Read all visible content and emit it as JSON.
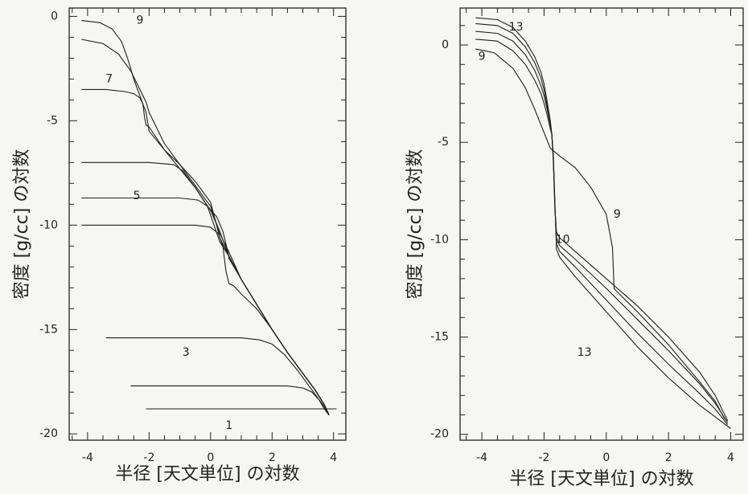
{
  "chart_data": [
    {
      "type": "line",
      "xlabel": "半径 [天文単位] の対数",
      "ylabel": "密度 [g/cc] の対数",
      "xlim": [
        -4.6,
        4.4
      ],
      "ylim": [
        -20.3,
        0.4
      ],
      "xticks": [
        -4,
        -2,
        0,
        2,
        4
      ],
      "yticks": [
        0,
        -5,
        -10,
        -15,
        -20
      ],
      "grid": false,
      "series": [
        {
          "x": [
            -4.2,
            -3.6,
            -3.2,
            -2.9,
            -2.7,
            -2.5,
            -2.3,
            -2.1,
            -2.0,
            -1.5,
            -1.0,
            -0.5,
            0.0,
            0.3,
            0.6,
            1.0,
            1.5,
            2.0,
            2.5,
            3.0,
            3.4,
            3.7,
            3.85
          ],
          "y": [
            -0.2,
            -0.3,
            -0.6,
            -1.2,
            -2.0,
            -3.0,
            -3.8,
            -4.6,
            -5.5,
            -6.4,
            -7.3,
            -8.2,
            -9.3,
            -10.3,
            -11.5,
            -12.6,
            -13.8,
            -15.0,
            -16.1,
            -17.1,
            -17.9,
            -18.6,
            -19.1
          ]
        },
        {
          "x": [
            -4.2,
            -3.5,
            -3.0,
            -2.6,
            -2.3,
            -2.1,
            -2.0,
            -1.5,
            -1.0,
            -0.5,
            0.0,
            0.3,
            0.6,
            1.0,
            1.5,
            2.0,
            2.5,
            3.0,
            3.4,
            3.7,
            3.85
          ],
          "y": [
            -1.1,
            -1.3,
            -1.8,
            -2.6,
            -3.5,
            -4.1,
            -4.6,
            -6.1,
            -7.1,
            -8.1,
            -9.1,
            -10.4,
            -11.3,
            -12.6,
            -13.8,
            -15.0,
            -16.1,
            -17.1,
            -17.9,
            -18.6,
            -19.1
          ]
        },
        {
          "x": [
            -4.2,
            -3.4,
            -2.8,
            -2.5,
            -2.3,
            -2.2,
            -2.15,
            -2.1,
            -2.0,
            -1.5,
            -1.0,
            -0.5,
            0.0,
            0.3,
            0.6,
            1.0,
            1.5,
            2.0,
            2.5,
            3.0,
            3.4,
            3.7,
            3.85
          ],
          "y": [
            -3.5,
            -3.5,
            -3.6,
            -3.7,
            -3.9,
            -4.2,
            -4.8,
            -5.2,
            -5.3,
            -6.4,
            -7.1,
            -7.9,
            -8.9,
            -10.6,
            -11.5,
            -12.6,
            -13.8,
            -15.0,
            -16.1,
            -17.1,
            -17.9,
            -18.6,
            -19.1
          ]
        },
        {
          "x": [
            -4.2,
            -2.0,
            -1.2,
            -0.9,
            -0.5,
            -0.1,
            0.3,
            0.6,
            1.0,
            1.5,
            2.0,
            2.5,
            3.0,
            3.4,
            3.7,
            3.85
          ],
          "y": [
            -7.0,
            -7.0,
            -7.1,
            -7.4,
            -8.2,
            -9.1,
            -10.8,
            -11.5,
            -12.6,
            -13.8,
            -15.0,
            -16.1,
            -17.1,
            -17.9,
            -18.6,
            -19.1
          ]
        },
        {
          "x": [
            -4.2,
            -1.0,
            -0.4,
            -0.1,
            0.2,
            0.4,
            0.55,
            0.6,
            1.0,
            1.5,
            2.0,
            2.5,
            3.0,
            3.4,
            3.7,
            3.85
          ],
          "y": [
            -8.7,
            -8.7,
            -8.8,
            -9.1,
            -9.6,
            -10.3,
            -11.2,
            -11.6,
            -12.6,
            -13.8,
            -15.0,
            -16.1,
            -17.1,
            -17.9,
            -18.6,
            -19.1
          ]
        },
        {
          "x": [
            -4.2,
            -0.5,
            0.0,
            0.25,
            0.4,
            0.5,
            0.6,
            0.75,
            1.0,
            1.5,
            2.0,
            2.5,
            3.0,
            3.4,
            3.7,
            3.85
          ],
          "y": [
            -10.0,
            -10.0,
            -10.1,
            -10.4,
            -11.0,
            -12.2,
            -12.8,
            -12.9,
            -13.3,
            -14.0,
            -15.0,
            -16.1,
            -17.1,
            -17.9,
            -18.6,
            -19.1
          ]
        },
        {
          "x": [
            -3.4,
            1.0,
            1.6,
            2.0,
            2.4,
            2.8,
            3.2,
            3.5,
            3.7,
            3.85
          ],
          "y": [
            -15.4,
            -15.4,
            -15.5,
            -15.7,
            -16.2,
            -16.9,
            -17.7,
            -18.3,
            -18.8,
            -19.1
          ]
        },
        {
          "x": [
            -2.6,
            2.5,
            3.0,
            3.3,
            3.55,
            3.7,
            3.85
          ],
          "y": [
            -17.7,
            -17.7,
            -17.8,
            -18.0,
            -18.4,
            -18.7,
            -19.1
          ]
        },
        {
          "x": [
            -2.1,
            4.1
          ],
          "y": [
            -18.8,
            -18.8
          ],
          "strokeWidth": 3
        }
      ],
      "annotations": [
        {
          "text": "9",
          "x": -2.3,
          "y": -0.2
        },
        {
          "text": "7",
          "x": -3.3,
          "y": -3.0
        },
        {
          "text": "5",
          "x": -2.4,
          "y": -8.6
        },
        {
          "text": "3",
          "x": -0.8,
          "y": -16.1
        },
        {
          "text": "1",
          "x": 0.6,
          "y": -19.6
        }
      ]
    },
    {
      "type": "line",
      "xlabel": "半径 [天文単位] の対数",
      "ylabel": "密度 [g/cc] の対数",
      "xlim": [
        -4.7,
        4.4
      ],
      "ylim": [
        -20.3,
        1.9
      ],
      "xticks": [
        -4,
        -2,
        0,
        2,
        4
      ],
      "yticks": [
        0,
        -5,
        -10,
        -15,
        -20
      ],
      "grid": false,
      "series": [
        {
          "x": [
            -4.2,
            -3.6,
            -3.0,
            -2.6,
            -2.3,
            -2.0,
            -1.8,
            -1.5,
            -1.0,
            -0.5,
            0.0,
            0.2,
            0.25,
            0.3,
            1.0,
            2.0,
            3.0,
            3.5,
            3.8
          ],
          "y": [
            -0.2,
            -0.4,
            -1.2,
            -2.2,
            -3.3,
            -4.5,
            -5.3,
            -5.7,
            -6.3,
            -7.3,
            -8.7,
            -10.4,
            -12.5,
            -12.6,
            -13.7,
            -15.4,
            -17.3,
            -18.3,
            -19.2
          ]
        },
        {
          "x": [
            -4.2,
            -3.5,
            -3.0,
            -2.6,
            -2.3,
            -2.1,
            -2.0,
            -1.9,
            -1.8,
            -1.75,
            -1.7,
            -1.65,
            -1.6,
            -1.5,
            -1.0,
            0.0,
            1.0,
            2.0,
            3.0,
            3.5,
            3.9
          ],
          "y": [
            0.3,
            0.2,
            -0.3,
            -1.0,
            -1.8,
            -2.5,
            -3.0,
            -3.6,
            -4.3,
            -4.6,
            -6.0,
            -8.5,
            -9.6,
            -9.9,
            -10.6,
            -12.0,
            -13.4,
            -15.0,
            -16.8,
            -18.0,
            -19.3
          ]
        },
        {
          "x": [
            -4.2,
            -3.5,
            -3.0,
            -2.6,
            -2.3,
            -2.1,
            -2.0,
            -1.9,
            -1.8,
            -1.75,
            -1.7,
            -1.65,
            -1.6,
            -1.5,
            -1.0,
            0.0,
            1.0,
            2.0,
            3.0,
            3.5,
            3.9
          ],
          "y": [
            0.7,
            0.6,
            0.2,
            -0.5,
            -1.3,
            -2.1,
            -2.6,
            -3.3,
            -4.1,
            -4.6,
            -5.9,
            -8.4,
            -9.9,
            -10.3,
            -11.0,
            -12.5,
            -14.1,
            -15.7,
            -17.4,
            -18.4,
            -19.4
          ]
        },
        {
          "x": [
            -4.2,
            -3.5,
            -3.0,
            -2.6,
            -2.3,
            -2.1,
            -2.0,
            -1.9,
            -1.8,
            -1.75,
            -1.7,
            -1.65,
            -1.6,
            -1.5,
            -1.0,
            0.0,
            1.0,
            2.0,
            3.0,
            3.5,
            3.9
          ],
          "y": [
            1.1,
            1.0,
            0.6,
            -0.1,
            -0.9,
            -1.7,
            -2.3,
            -3.1,
            -4.0,
            -4.6,
            -5.8,
            -8.3,
            -10.2,
            -10.6,
            -11.4,
            -13.1,
            -14.8,
            -16.4,
            -17.9,
            -18.7,
            -19.5
          ]
        },
        {
          "x": [
            -4.2,
            -3.5,
            -3.0,
            -2.6,
            -2.3,
            -2.1,
            -2.0,
            -1.9,
            -1.8,
            -1.75,
            -1.7,
            -1.65,
            -1.6,
            -1.5,
            -1.0,
            0.0,
            1.0,
            2.0,
            3.0,
            3.5,
            4.0
          ],
          "y": [
            1.4,
            1.3,
            0.9,
            0.2,
            -0.6,
            -1.4,
            -2.0,
            -2.9,
            -3.9,
            -4.6,
            -5.7,
            -8.2,
            -10.5,
            -10.9,
            -11.9,
            -13.7,
            -15.5,
            -17.1,
            -18.5,
            -19.1,
            -19.7
          ]
        }
      ],
      "annotations": [
        {
          "text": "13",
          "x": -2.9,
          "y": 0.9
        },
        {
          "text": "9",
          "x": -4.0,
          "y": -0.6
        },
        {
          "text": "9",
          "x": 0.35,
          "y": -8.7
        },
        {
          "text": "10",
          "x": -1.4,
          "y": -10.0
        },
        {
          "text": "13",
          "x": -0.7,
          "y": -15.8
        }
      ]
    }
  ]
}
